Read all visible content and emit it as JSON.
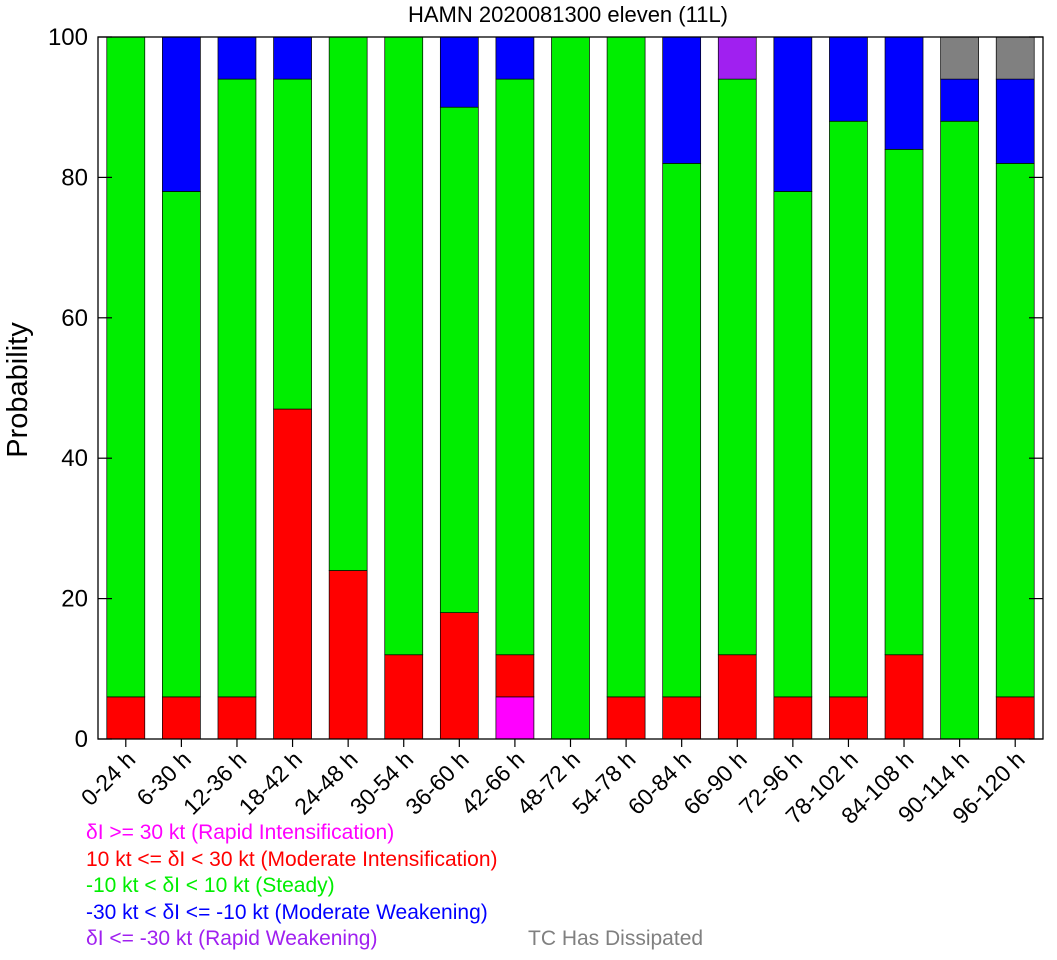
{
  "chart_data": {
    "type": "bar",
    "stacked": true,
    "title": "HAMN 2020081300 eleven (11L)",
    "ylabel": "Probability",
    "xlabel": "",
    "ylim": [
      0,
      100
    ],
    "yticks": [
      0,
      20,
      40,
      60,
      80,
      100
    ],
    "categories": [
      "0-24 h",
      "6-30 h",
      "12-36 h",
      "18-42 h",
      "24-48 h",
      "30-54 h",
      "36-60 h",
      "42-66 h",
      "48-72 h",
      "54-78 h",
      "60-84 h",
      "66-90 h",
      "72-96 h",
      "78-102 h",
      "84-108 h",
      "90-114 h",
      "96-120 h"
    ],
    "series": [
      {
        "name": "δI >= 30 kt (Rapid Intensification)",
        "color": "#ff00ff",
        "values": [
          0,
          0,
          0,
          0,
          0,
          0,
          0,
          6,
          0,
          0,
          0,
          0,
          0,
          0,
          0,
          0,
          0
        ]
      },
      {
        "name": "10 kt <= δI < 30 kt (Moderate Intensification)",
        "color": "#ff0000",
        "values": [
          6,
          6,
          6,
          47,
          24,
          12,
          18,
          6,
          0,
          6,
          6,
          12,
          6,
          6,
          12,
          0,
          6
        ]
      },
      {
        "name": "-10 kt < δI < 10 kt (Steady)",
        "color": "#00ee00",
        "values": [
          94,
          72,
          88,
          47,
          76,
          88,
          72,
          82,
          100,
          94,
          76,
          82,
          72,
          82,
          72,
          88,
          76
        ]
      },
      {
        "name": "-30 kt < δI <= -10 kt (Moderate Weakening)",
        "color": "#0000ff",
        "values": [
          0,
          22,
          6,
          6,
          0,
          0,
          10,
          6,
          0,
          0,
          18,
          0,
          22,
          12,
          16,
          6,
          12
        ]
      },
      {
        "name": "δI <= -30 kt (Rapid Weakening)",
        "color": "#a020f0",
        "values": [
          0,
          0,
          0,
          0,
          0,
          0,
          0,
          0,
          0,
          0,
          0,
          6,
          0,
          0,
          0,
          0,
          0
        ]
      },
      {
        "name": "TC Has Dissipated",
        "color": "#808080",
        "values": [
          0,
          0,
          0,
          0,
          0,
          0,
          0,
          0,
          0,
          0,
          0,
          0,
          0,
          0,
          0,
          6,
          6
        ]
      }
    ],
    "legend": {
      "position": "bottom-left"
    }
  }
}
